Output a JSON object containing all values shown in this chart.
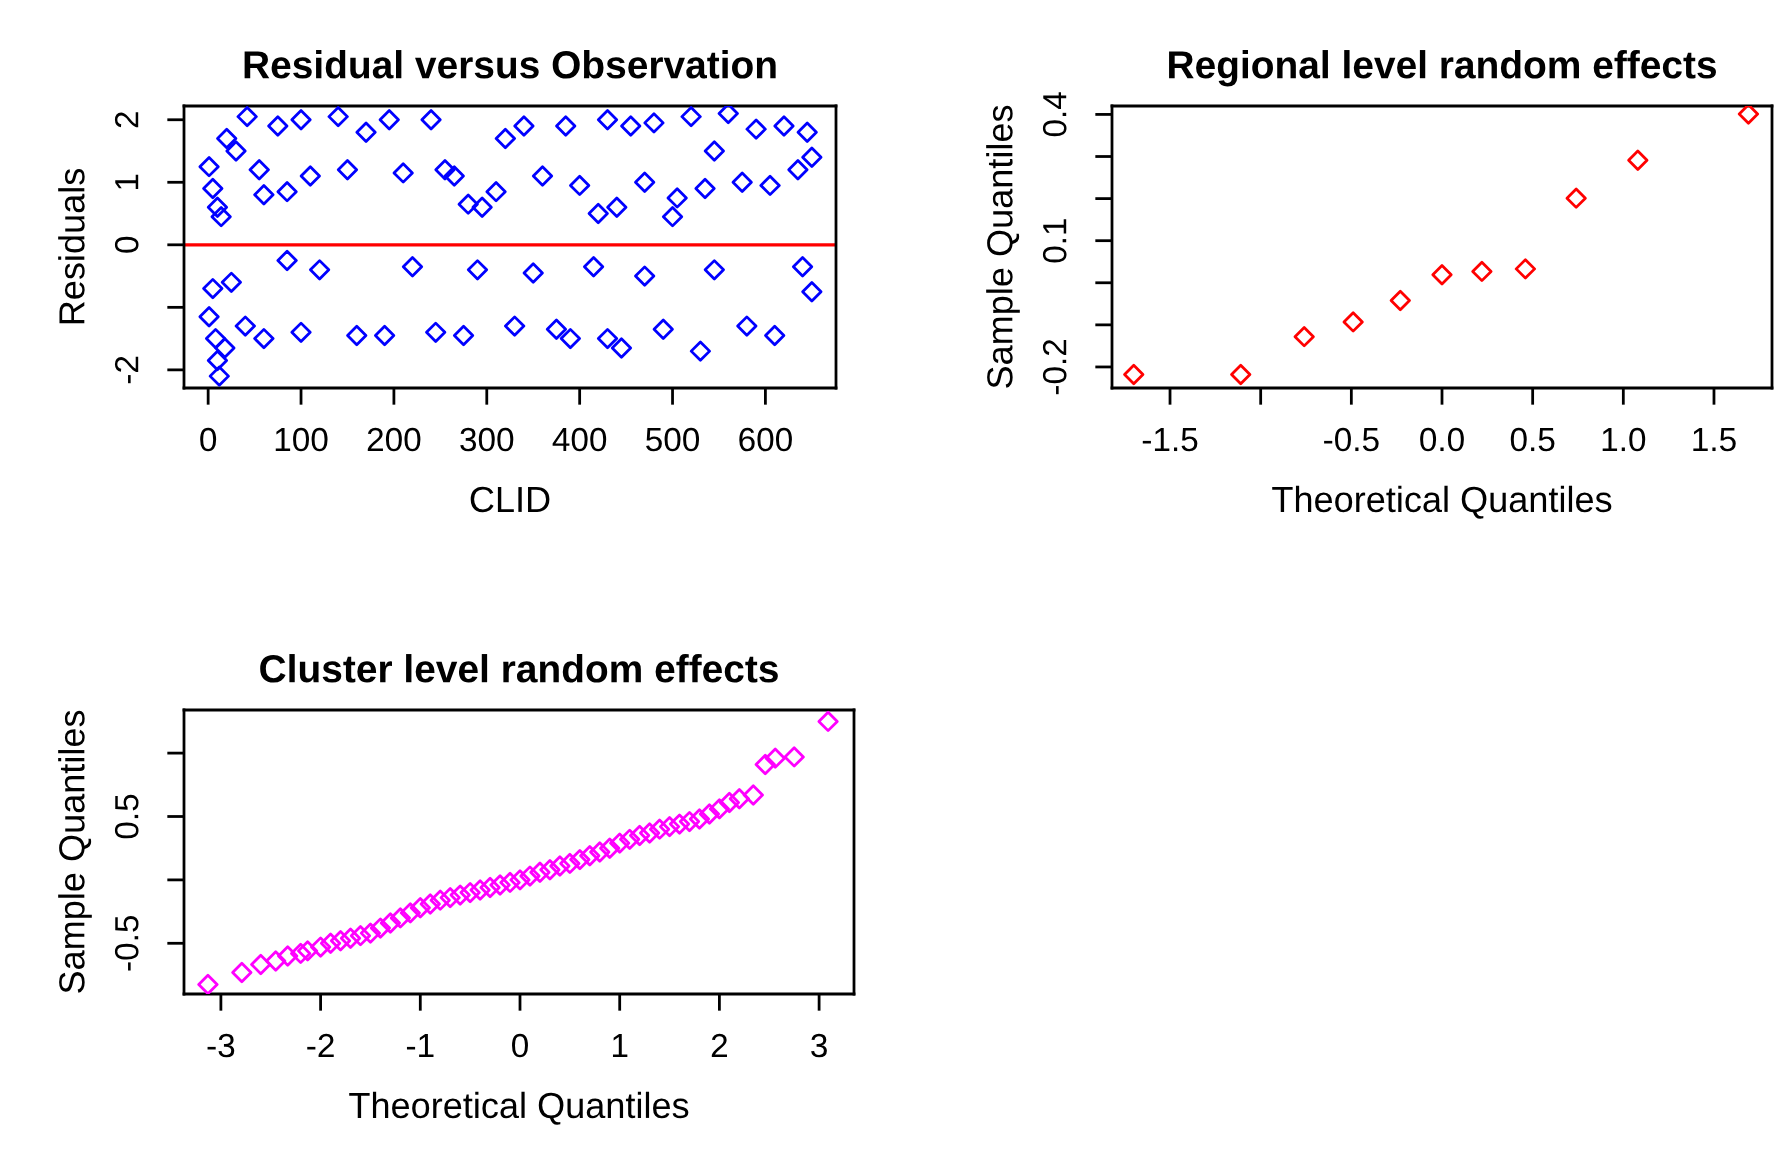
{
  "chart_data": [
    {
      "type": "scatter",
      "title": "Residual versus Observation",
      "xlabel": "CLID",
      "ylabel": "Residuals",
      "marker": "diamond",
      "grid": false,
      "legend": false,
      "xlim": [
        -26,
        676
      ],
      "ylim": [
        -2.29,
        2.22
      ],
      "xticks": [
        0,
        100,
        200,
        300,
        400,
        500,
        600
      ],
      "yticks": [
        -2,
        {
          "value": -1,
          "label": null
        },
        0,
        1,
        2
      ],
      "ref_lines": [
        {
          "axis": "y",
          "value": 0,
          "color": "#ff0000"
        }
      ],
      "series": [
        {
          "color": "#0000ff",
          "x": [
            1,
            5,
            10,
            14,
            20,
            30,
            42,
            55,
            60,
            75,
            85,
            100,
            110,
            140,
            150,
            170,
            195,
            210,
            240,
            255,
            265,
            280,
            295,
            310,
            320,
            340,
            360,
            385,
            400,
            420,
            430,
            440,
            455,
            470,
            480,
            500,
            505,
            520,
            535,
            545,
            560,
            575,
            590,
            605,
            620,
            635,
            645,
            650
          ],
          "values": [
            1.25,
            0.9,
            0.6,
            0.45,
            1.7,
            1.5,
            2.05,
            1.2,
            0.8,
            1.9,
            0.85,
            2.0,
            1.1,
            2.05,
            1.2,
            1.8,
            2.0,
            1.15,
            2.0,
            1.2,
            1.1,
            0.65,
            0.6,
            0.85,
            1.7,
            1.9,
            1.1,
            1.9,
            0.95,
            0.5,
            2.0,
            0.6,
            1.9,
            1.0,
            1.95,
            0.45,
            0.75,
            2.05,
            0.9,
            1.5,
            2.1,
            1.0,
            1.85,
            0.95,
            1.9,
            1.2,
            1.8,
            1.4
          ]
        },
        {
          "color": "#0000ff",
          "x": [
            1,
            5,
            8,
            10,
            12,
            18,
            25,
            40,
            60,
            85,
            100,
            120,
            160,
            190,
            220,
            245,
            275,
            290,
            330,
            350,
            375,
            390,
            415,
            430,
            445,
            470,
            490,
            530,
            545,
            580,
            610,
            640,
            650
          ],
          "values": [
            -1.15,
            -0.7,
            -1.5,
            -1.85,
            -2.1,
            -1.65,
            -0.6,
            -1.3,
            -1.5,
            -0.25,
            -1.4,
            -0.4,
            -1.45,
            -1.45,
            -0.35,
            -1.4,
            -1.45,
            -0.4,
            -1.3,
            -0.45,
            -1.35,
            -1.5,
            -0.35,
            -1.5,
            -1.65,
            -0.5,
            -1.35,
            -1.7,
            -0.4,
            -1.3,
            -1.45,
            -0.35,
            -0.75
          ]
        }
      ]
    },
    {
      "type": "scatter",
      "title": "Regional level random effects",
      "xlabel": "Theoretical Quantiles",
      "ylabel": "Sample Quantiles",
      "marker": "diamond",
      "grid": false,
      "legend": false,
      "xlim": [
        -1.82,
        1.82
      ],
      "ylim": [
        -0.25,
        0.42
      ],
      "xticks": [
        -1.5,
        {
          "value": -1.0,
          "label": null
        },
        -0.5,
        {
          "value": 0.0,
          "label": "0.0"
        },
        0.5,
        {
          "value": 1.0,
          "label": "1.0"
        },
        1.5
      ],
      "yticks": [
        -0.2,
        {
          "value": -0.1,
          "label": null
        },
        {
          "value": 0.0,
          "label": null
        },
        0.1,
        {
          "value": 0.2,
          "label": null
        },
        {
          "value": 0.3,
          "label": null
        },
        0.4
      ],
      "series": [
        {
          "color": "#ff0000",
          "x": [
            -1.7,
            -1.11,
            -0.76,
            -0.49,
            -0.23,
            0.0,
            0.22,
            0.46,
            0.74,
            1.08,
            1.69
          ],
          "values": [
            -0.218,
            -0.218,
            -0.128,
            -0.093,
            -0.042,
            0.019,
            0.027,
            0.033,
            0.201,
            0.291,
            0.401
          ]
        }
      ]
    },
    {
      "type": "scatter",
      "title": "Cluster level random effects",
      "xlabel": "Theoretical Quantiles",
      "ylabel": "Sample Quantiles",
      "marker": "diamond",
      "grid": false,
      "legend": false,
      "xlim": [
        -3.37,
        3.35
      ],
      "ylim": [
        -0.9,
        1.34
      ],
      "xticks": [
        -3,
        -2,
        -1,
        0,
        1,
        2,
        3
      ],
      "yticks": [
        -0.5,
        {
          "value": 0,
          "label": null
        },
        0.5,
        {
          "value": 1.0,
          "label": null
        }
      ],
      "series": [
        {
          "color": "#ff00ff",
          "x": [
            -3.13,
            -2.79,
            -2.6,
            -2.45,
            -2.33,
            -2.2,
            -2.13,
            -2.0,
            -1.9,
            -1.8,
            -1.7,
            -1.6,
            -1.5,
            -1.4,
            -1.3,
            -1.2,
            -1.1,
            -1.0,
            -0.9,
            -0.8,
            -0.7,
            -0.6,
            -0.5,
            -0.4,
            -0.3,
            -0.2,
            -0.1,
            0.0,
            0.1,
            0.2,
            0.3,
            0.4,
            0.5,
            0.6,
            0.7,
            0.8,
            0.9,
            1.0,
            1.1,
            1.2,
            1.3,
            1.4,
            1.5,
            1.6,
            1.7,
            1.8,
            1.9,
            2.0,
            2.1,
            2.2,
            2.34,
            2.46,
            2.56,
            2.75,
            3.09
          ],
          "values": [
            -0.825,
            -0.73,
            -0.667,
            -0.64,
            -0.6,
            -0.58,
            -0.56,
            -0.53,
            -0.5,
            -0.48,
            -0.46,
            -0.44,
            -0.42,
            -0.38,
            -0.34,
            -0.3,
            -0.26,
            -0.22,
            -0.19,
            -0.16,
            -0.14,
            -0.12,
            -0.1,
            -0.08,
            -0.06,
            -0.04,
            -0.02,
            0.0,
            0.03,
            0.06,
            0.08,
            0.11,
            0.13,
            0.16,
            0.19,
            0.22,
            0.25,
            0.29,
            0.32,
            0.35,
            0.37,
            0.4,
            0.42,
            0.44,
            0.46,
            0.48,
            0.52,
            0.56,
            0.61,
            0.64,
            0.67,
            0.91,
            0.96,
            0.97,
            1.25
          ]
        }
      ]
    }
  ]
}
